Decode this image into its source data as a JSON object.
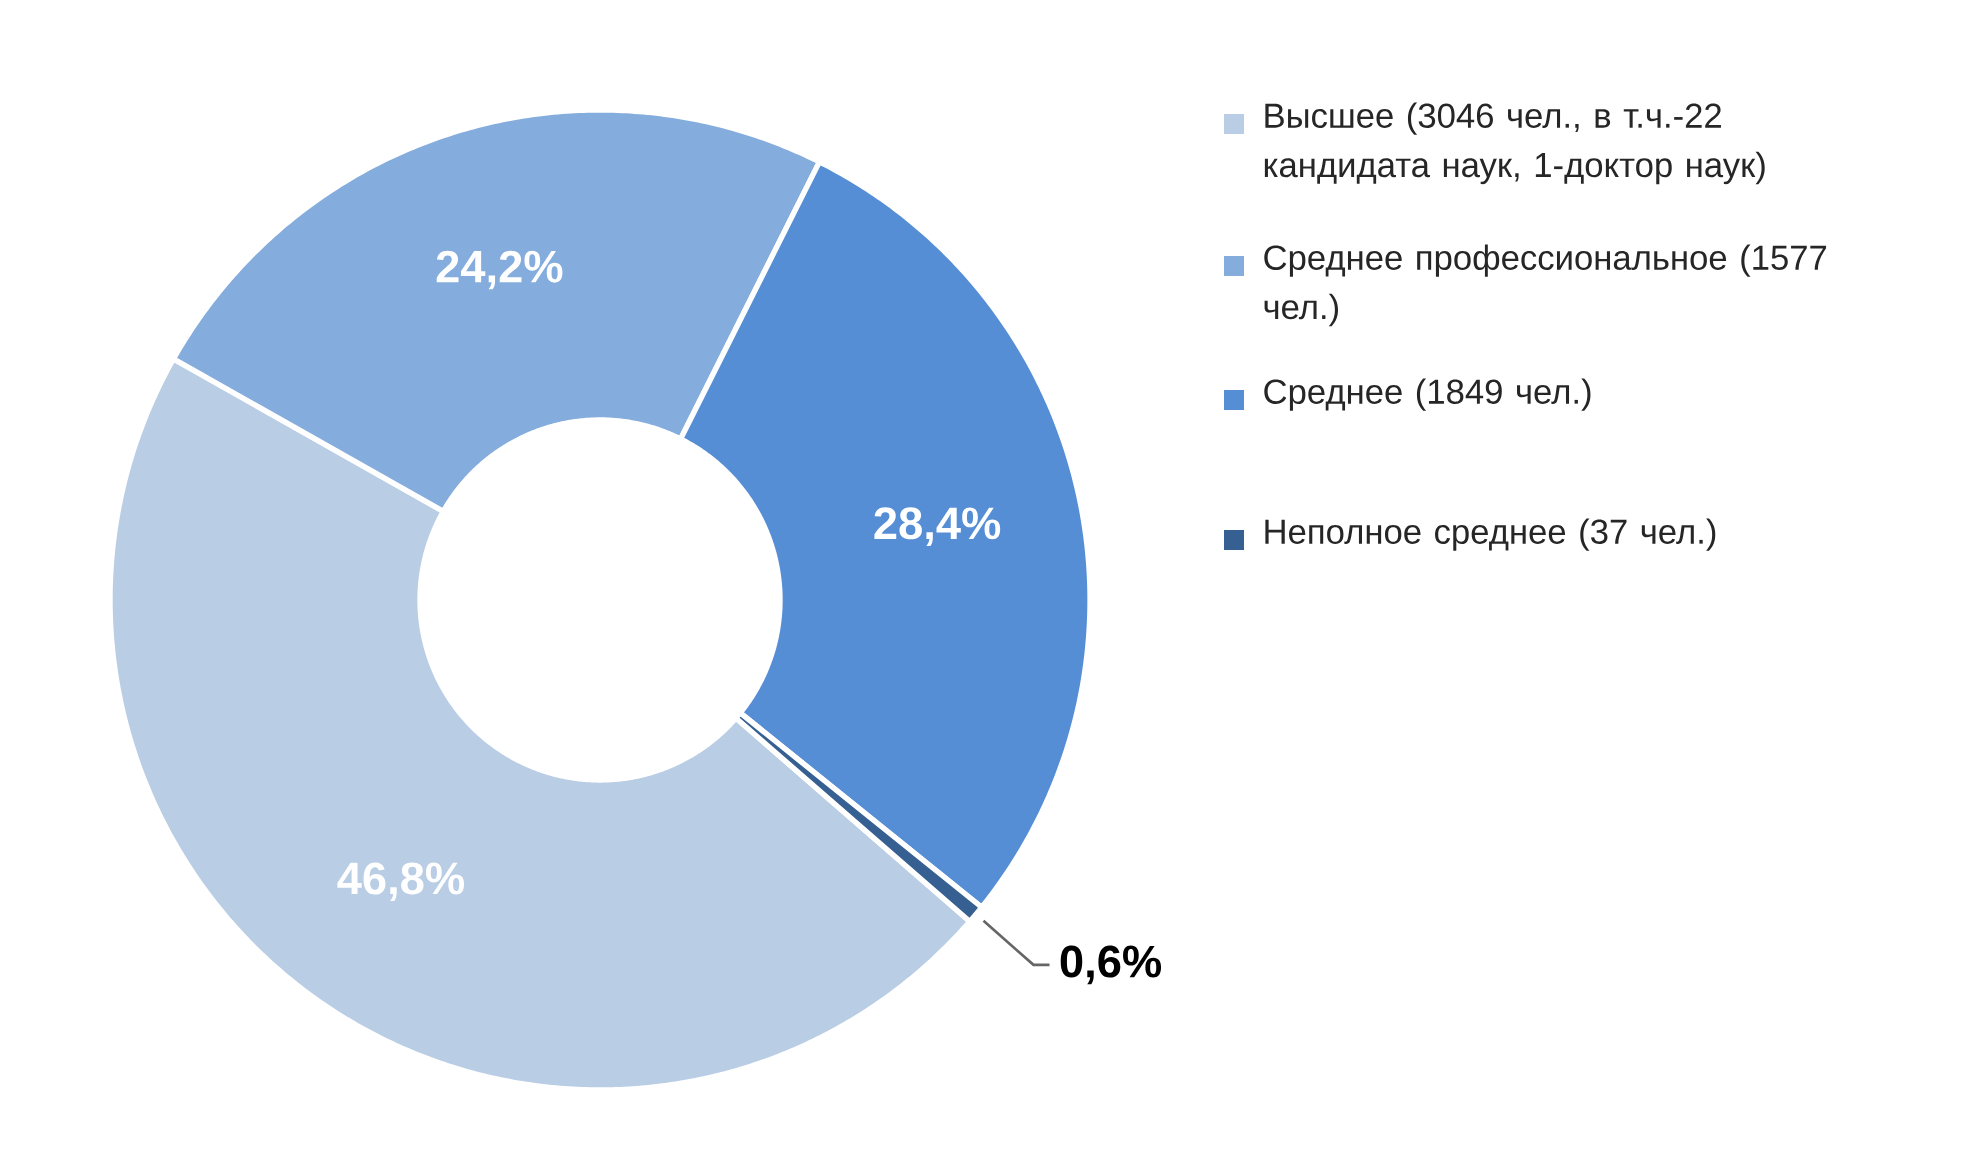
{
  "chart_data": {
    "type": "donut",
    "categories": [
      "Высшее (3046 чел., в т.ч.-22 кандидата наук, 1-доктор наук)",
      "Среднее профессиональное (1577 чел.)",
      "Среднее (1849 чел.)",
      "Неполное среднее (37 чел.)"
    ],
    "values": [
      46.8,
      24.2,
      28.4,
      0.6
    ],
    "value_labels": [
      "46,8%",
      "24,2%",
      "28,4%",
      "0,6%"
    ],
    "colors": [
      "#b9cde5",
      "#84acdc",
      "#558ed5",
      "#376092"
    ],
    "legend": "right"
  }
}
